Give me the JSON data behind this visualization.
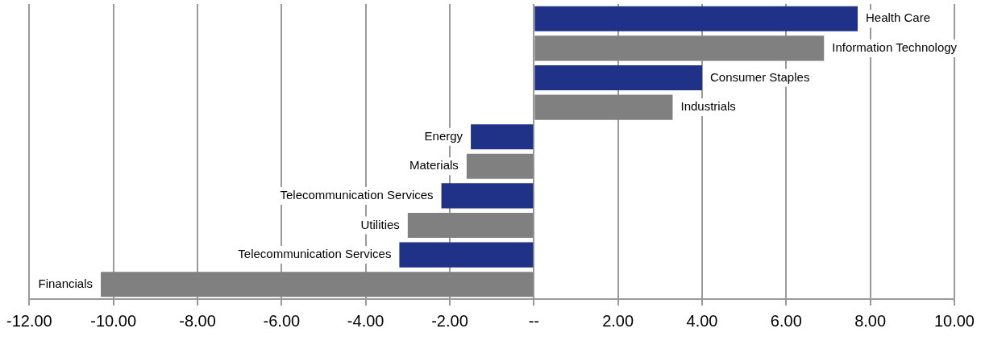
{
  "chart_data": {
    "type": "bar",
    "orientation": "horizontal",
    "categories": [
      "Health Care",
      "Information Technology",
      "Consumer Staples",
      "Industrials",
      "Energy",
      "Materials",
      "Telecommunication Services",
      "Utilities",
      "Telecommunication Services",
      "Financials"
    ],
    "values": [
      7.7,
      6.9,
      4.0,
      3.3,
      -1.5,
      -1.6,
      -2.2,
      -3.0,
      -3.2,
      -10.3
    ],
    "colors": [
      "#1f3287",
      "#808080",
      "#1f3287",
      "#808080",
      "#1f3287",
      "#808080",
      "#1f3287",
      "#808080",
      "#1f3287",
      "#808080"
    ],
    "xlim": [
      -12,
      10
    ],
    "xticks": [
      {
        "value": -12,
        "label": "-12.00"
      },
      {
        "value": -10,
        "label": "-10.00"
      },
      {
        "value": -8,
        "label": "-8.00"
      },
      {
        "value": -6,
        "label": "-6.00"
      },
      {
        "value": -4,
        "label": "-4.00"
      },
      {
        "value": -2,
        "label": "-2.00"
      },
      {
        "value": 0,
        "label": "--"
      },
      {
        "value": 2,
        "label": "2.00"
      },
      {
        "value": 4,
        "label": "4.00"
      },
      {
        "value": 6,
        "label": "6.00"
      },
      {
        "value": 8,
        "label": "8.00"
      },
      {
        "value": 10,
        "label": "10.00"
      }
    ],
    "grid": "x",
    "legend": false
  }
}
